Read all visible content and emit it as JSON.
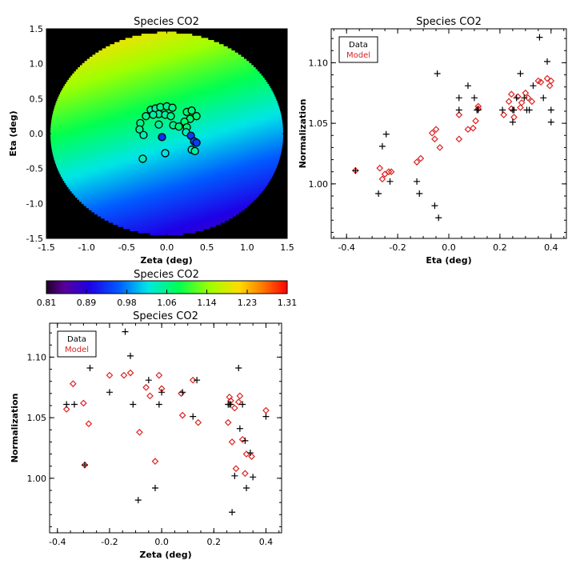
{
  "colors": {
    "data_marker": "#000000",
    "model_marker": "#dd2222",
    "background": "#ffffff",
    "map_outside": "#000000"
  },
  "chart_data": [
    {
      "id": "map",
      "type": "heatmap",
      "title": "Species CO2",
      "xlabel": "Zeta (deg)",
      "ylabel": "Eta (deg)",
      "xlim": [
        -1.5,
        1.5
      ],
      "ylim": [
        -1.5,
        1.5
      ],
      "xticks": [
        "-1.5",
        "-1.0",
        "-0.5",
        "0.0",
        "0.5",
        "1.0",
        "1.5"
      ],
      "yticks": [
        "-1.5",
        "-1.0",
        "-0.5",
        "0.0",
        "0.5",
        "1.0",
        "1.5"
      ],
      "xtick_values": [
        -1.5,
        -1.0,
        -0.5,
        0.0,
        0.5,
        1.0,
        1.5
      ],
      "ytick_values": [
        -1.5,
        -1.0,
        -0.5,
        0.0,
        0.5,
        1.0,
        1.5
      ],
      "field_radius_deg": 1.45,
      "points": [
        {
          "x": -0.2,
          "y": 0.34,
          "v": 1.05
        },
        {
          "x": -0.14,
          "y": 0.36,
          "v": 1.05
        },
        {
          "x": -0.08,
          "y": 0.38,
          "v": 1.06
        },
        {
          "x": 0.0,
          "y": 0.39,
          "v": 1.06
        },
        {
          "x": 0.07,
          "y": 0.37,
          "v": 1.06
        },
        {
          "x": -0.1,
          "y": 0.28,
          "v": 1.05
        },
        {
          "x": -0.02,
          "y": 0.27,
          "v": 1.05
        },
        {
          "x": 0.05,
          "y": 0.25,
          "v": 1.06
        },
        {
          "x": -0.17,
          "y": 0.27,
          "v": 1.05
        },
        {
          "x": 0.25,
          "y": 0.31,
          "v": 1.07
        },
        {
          "x": 0.31,
          "y": 0.33,
          "v": 1.07
        },
        {
          "x": 0.37,
          "y": 0.25,
          "v": 1.07
        },
        {
          "x": 0.29,
          "y": 0.21,
          "v": 1.07
        },
        {
          "x": -0.26,
          "y": 0.25,
          "v": 1.06
        },
        {
          "x": -0.33,
          "y": 0.15,
          "v": 1.06
        },
        {
          "x": -0.34,
          "y": 0.06,
          "v": 1.06
        },
        {
          "x": -0.29,
          "y": -0.02,
          "v": 1.04
        },
        {
          "x": -0.1,
          "y": 0.13,
          "v": 1.05
        },
        {
          "x": 0.08,
          "y": 0.12,
          "v": 1.06
        },
        {
          "x": 0.15,
          "y": 0.1,
          "v": 1.07
        },
        {
          "x": 0.22,
          "y": 0.17,
          "v": 1.07
        },
        {
          "x": 0.25,
          "y": 0.09,
          "v": 1.07
        },
        {
          "x": 0.24,
          "y": 0.02,
          "v": 1.04
        },
        {
          "x": -0.06,
          "y": -0.05,
          "v": 0.93
        },
        {
          "x": 0.3,
          "y": -0.03,
          "v": 0.94
        },
        {
          "x": 0.34,
          "y": -0.11,
          "v": 0.95
        },
        {
          "x": 0.37,
          "y": -0.13,
          "v": 0.94
        },
        {
          "x": 0.31,
          "y": -0.23,
          "v": 1.04
        },
        {
          "x": 0.35,
          "y": -0.25,
          "v": 1.05
        },
        {
          "x": -0.02,
          "y": -0.28,
          "v": 1.02
        },
        {
          "x": -0.3,
          "y": -0.36,
          "v": 1.04
        }
      ]
    },
    {
      "id": "colorbar",
      "type": "colorbar",
      "title": "Species CO2",
      "range": [
        0.81,
        1.31
      ],
      "tick_labels": [
        "0.81",
        "0.89",
        "0.98",
        "1.06",
        "1.14",
        "1.23",
        "1.31"
      ],
      "tick_values": [
        0.81,
        0.893,
        0.977,
        1.06,
        1.143,
        1.227,
        1.31
      ]
    },
    {
      "id": "eta_plot",
      "type": "scatter",
      "title": "Species CO2",
      "xlabel": "Eta (deg)",
      "ylabel": "Normalization",
      "xlim": [
        -0.46,
        0.46
      ],
      "ylim": [
        0.955,
        1.128
      ],
      "xticks": [
        "-0.4",
        "-0.2",
        "0.0",
        "0.2",
        "0.4"
      ],
      "xtick_values": [
        -0.4,
        -0.2,
        0.0,
        0.2,
        0.4
      ],
      "yticks": [
        "1.00",
        "1.05",
        "1.10"
      ],
      "ytick_values": [
        1.0,
        1.05,
        1.1
      ],
      "legend": [
        "Data",
        "Model"
      ],
      "legend_position": "top-left",
      "series": [
        {
          "name": "Data",
          "marker": "plus",
          "points": [
            [
              -0.365,
              1.011
            ],
            [
              -0.275,
              0.992
            ],
            [
              -0.26,
              1.031
            ],
            [
              -0.245,
              1.041
            ],
            [
              -0.23,
              1.002
            ],
            [
              -0.125,
              1.002
            ],
            [
              -0.115,
              0.992
            ],
            [
              -0.055,
              0.982
            ],
            [
              -0.045,
              1.091
            ],
            [
              -0.04,
              0.972
            ],
            [
              0.04,
              1.071
            ],
            [
              0.04,
              1.061
            ],
            [
              0.075,
              1.081
            ],
            [
              0.1,
              1.071
            ],
            [
              0.11,
              1.061
            ],
            [
              0.115,
              1.061
            ],
            [
              0.21,
              1.061
            ],
            [
              0.25,
              1.061
            ],
            [
              0.25,
              1.051
            ],
            [
              0.255,
              1.061
            ],
            [
              0.265,
              1.071
            ],
            [
              0.28,
              1.091
            ],
            [
              0.295,
              1.071
            ],
            [
              0.305,
              1.061
            ],
            [
              0.315,
              1.061
            ],
            [
              0.33,
              1.081
            ],
            [
              0.355,
              1.121
            ],
            [
              0.37,
              1.071
            ],
            [
              0.385,
              1.101
            ],
            [
              0.4,
              1.061
            ],
            [
              0.4,
              1.051
            ]
          ]
        },
        {
          "name": "Model",
          "marker": "diamond",
          "points": [
            [
              -0.365,
              1.011
            ],
            [
              -0.27,
              1.013
            ],
            [
              -0.26,
              1.004
            ],
            [
              -0.25,
              1.008
            ],
            [
              -0.235,
              1.01
            ],
            [
              -0.225,
              1.01
            ],
            [
              -0.125,
              1.018
            ],
            [
              -0.11,
              1.021
            ],
            [
              -0.065,
              1.042
            ],
            [
              -0.055,
              1.037
            ],
            [
              -0.05,
              1.045
            ],
            [
              -0.035,
              1.03
            ],
            [
              0.04,
              1.057
            ],
            [
              0.04,
              1.037
            ],
            [
              0.075,
              1.045
            ],
            [
              0.095,
              1.046
            ],
            [
              0.105,
              1.052
            ],
            [
              0.115,
              1.062
            ],
            [
              0.115,
              1.064
            ],
            [
              0.215,
              1.057
            ],
            [
              0.235,
              1.068
            ],
            [
              0.245,
              1.062
            ],
            [
              0.245,
              1.074
            ],
            [
              0.255,
              1.055
            ],
            [
              0.27,
              1.072
            ],
            [
              0.28,
              1.063
            ],
            [
              0.285,
              1.067
            ],
            [
              0.3,
              1.075
            ],
            [
              0.31,
              1.071
            ],
            [
              0.325,
              1.068
            ],
            [
              0.35,
              1.085
            ],
            [
              0.36,
              1.084
            ],
            [
              0.385,
              1.087
            ],
            [
              0.395,
              1.081
            ],
            [
              0.4,
              1.085
            ]
          ]
        }
      ]
    },
    {
      "id": "zeta_plot",
      "type": "scatter",
      "title": "Species CO2",
      "xlabel": "Zeta (deg)",
      "ylabel": "Normalization",
      "xlim": [
        -0.43,
        0.46
      ],
      "ylim": [
        0.955,
        1.128
      ],
      "xticks": [
        "-0.4",
        "-0.2",
        "0.0",
        "0.2",
        "0.4"
      ],
      "xtick_values": [
        -0.4,
        -0.2,
        0.0,
        0.2,
        0.4
      ],
      "yticks": [
        "1.00",
        "1.05",
        "1.10"
      ],
      "ytick_values": [
        1.0,
        1.05,
        1.1
      ],
      "legend": [
        "Data",
        "Model"
      ],
      "legend_position": "top-left",
      "series": [
        {
          "name": "Data",
          "marker": "plus",
          "points": [
            [
              -0.365,
              1.061
            ],
            [
              -0.335,
              1.061
            ],
            [
              -0.295,
              1.011
            ],
            [
              -0.275,
              1.091
            ],
            [
              -0.2,
              1.071
            ],
            [
              -0.14,
              1.121
            ],
            [
              -0.12,
              1.101
            ],
            [
              -0.11,
              1.061
            ],
            [
              -0.09,
              0.982
            ],
            [
              -0.05,
              1.081
            ],
            [
              -0.025,
              0.992
            ],
            [
              -0.01,
              1.061
            ],
            [
              0.0,
              1.071
            ],
            [
              0.08,
              1.071
            ],
            [
              0.12,
              1.051
            ],
            [
              0.135,
              1.081
            ],
            [
              0.255,
              1.061
            ],
            [
              0.26,
              1.061
            ],
            [
              0.265,
              1.061
            ],
            [
              0.27,
              0.972
            ],
            [
              0.28,
              1.002
            ],
            [
              0.295,
              1.091
            ],
            [
              0.3,
              1.041
            ],
            [
              0.31,
              1.061
            ],
            [
              0.32,
              1.031
            ],
            [
              0.325,
              0.992
            ],
            [
              0.34,
              1.021
            ],
            [
              0.35,
              1.001
            ],
            [
              0.4,
              1.051
            ]
          ]
        },
        {
          "name": "Model",
          "marker": "diamond",
          "points": [
            [
              -0.365,
              1.057
            ],
            [
              -0.34,
              1.078
            ],
            [
              -0.3,
              1.062
            ],
            [
              -0.295,
              1.011
            ],
            [
              -0.28,
              1.045
            ],
            [
              -0.2,
              1.085
            ],
            [
              -0.145,
              1.085
            ],
            [
              -0.12,
              1.087
            ],
            [
              -0.085,
              1.038
            ],
            [
              -0.06,
              1.075
            ],
            [
              -0.045,
              1.068
            ],
            [
              -0.025,
              1.014
            ],
            [
              -0.01,
              1.085
            ],
            [
              0.0,
              1.074
            ],
            [
              0.075,
              1.07
            ],
            [
              0.08,
              1.052
            ],
            [
              0.12,
              1.081
            ],
            [
              0.14,
              1.046
            ],
            [
              0.255,
              1.046
            ],
            [
              0.26,
              1.067
            ],
            [
              0.265,
              1.064
            ],
            [
              0.27,
              1.03
            ],
            [
              0.28,
              1.058
            ],
            [
              0.285,
              1.008
            ],
            [
              0.295,
              1.063
            ],
            [
              0.3,
              1.068
            ],
            [
              0.31,
              1.032
            ],
            [
              0.32,
              1.004
            ],
            [
              0.325,
              1.02
            ],
            [
              0.345,
              1.018
            ],
            [
              0.4,
              1.056
            ]
          ]
        }
      ]
    }
  ]
}
